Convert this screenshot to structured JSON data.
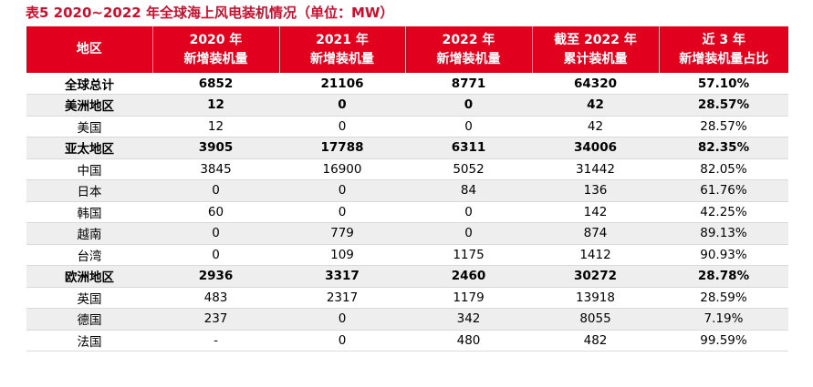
{
  "title": "表5  2020~2022 年全球海上风电装机情况（单位：MW）",
  "headers": [
    {
      "line1": "地区",
      "line2": ""
    },
    {
      "line1": "2020 年",
      "line2": "新增装机量"
    },
    {
      "line1": "2021 年",
      "line2": "新增装机量"
    },
    {
      "line1": "2022 年",
      "line2": "新增装机量"
    },
    {
      "line1": "截至 2022 年",
      "line2": "累计装机量"
    },
    {
      "line1": "近 3 年",
      "line2": "新增装机量占比"
    }
  ],
  "rows": [
    {
      "cells": [
        "全球总计",
        "6852",
        "21106",
        "8771",
        "64320",
        "57.10%"
      ],
      "bold": true
    },
    {
      "cells": [
        "美洲地区",
        "12",
        "0",
        "0",
        "42",
        "28.57%"
      ],
      "bold": true
    },
    {
      "cells": [
        "美国",
        "12",
        "0",
        "0",
        "42",
        "28.57%"
      ],
      "bold": false
    },
    {
      "cells": [
        "亚太地区",
        "3905",
        "17788",
        "6311",
        "34006",
        "82.35%"
      ],
      "bold": true
    },
    {
      "cells": [
        "中国",
        "3845",
        "16900",
        "5052",
        "31442",
        "82.05%"
      ],
      "bold": false
    },
    {
      "cells": [
        "日本",
        "0",
        "0",
        "84",
        "136",
        "61.76%"
      ],
      "bold": false
    },
    {
      "cells": [
        "韩国",
        "60",
        "0",
        "0",
        "142",
        "42.25%"
      ],
      "bold": false
    },
    {
      "cells": [
        "越南",
        "0",
        "779",
        "0",
        "874",
        "89.13%"
      ],
      "bold": false
    },
    {
      "cells": [
        "台湾",
        "0",
        "109",
        "1175",
        "1412",
        "90.93%"
      ],
      "bold": false
    },
    {
      "cells": [
        "欧洲地区",
        "2936",
        "3317",
        "2460",
        "30272",
        "28.78%"
      ],
      "bold": true
    },
    {
      "cells": [
        "英国",
        "483",
        "2317",
        "1179",
        "13918",
        "28.59%"
      ],
      "bold": false
    },
    {
      "cells": [
        "德国",
        "237",
        "0",
        "342",
        "8055",
        "7.19%"
      ],
      "bold": false
    },
    {
      "cells": [
        "法国",
        "-",
        "0",
        "480",
        "482",
        "99.59%"
      ],
      "bold": false
    }
  ],
  "colors": {
    "header_bg": "#e1001e",
    "title": "#c8102e",
    "shade": "#eeeeee"
  }
}
